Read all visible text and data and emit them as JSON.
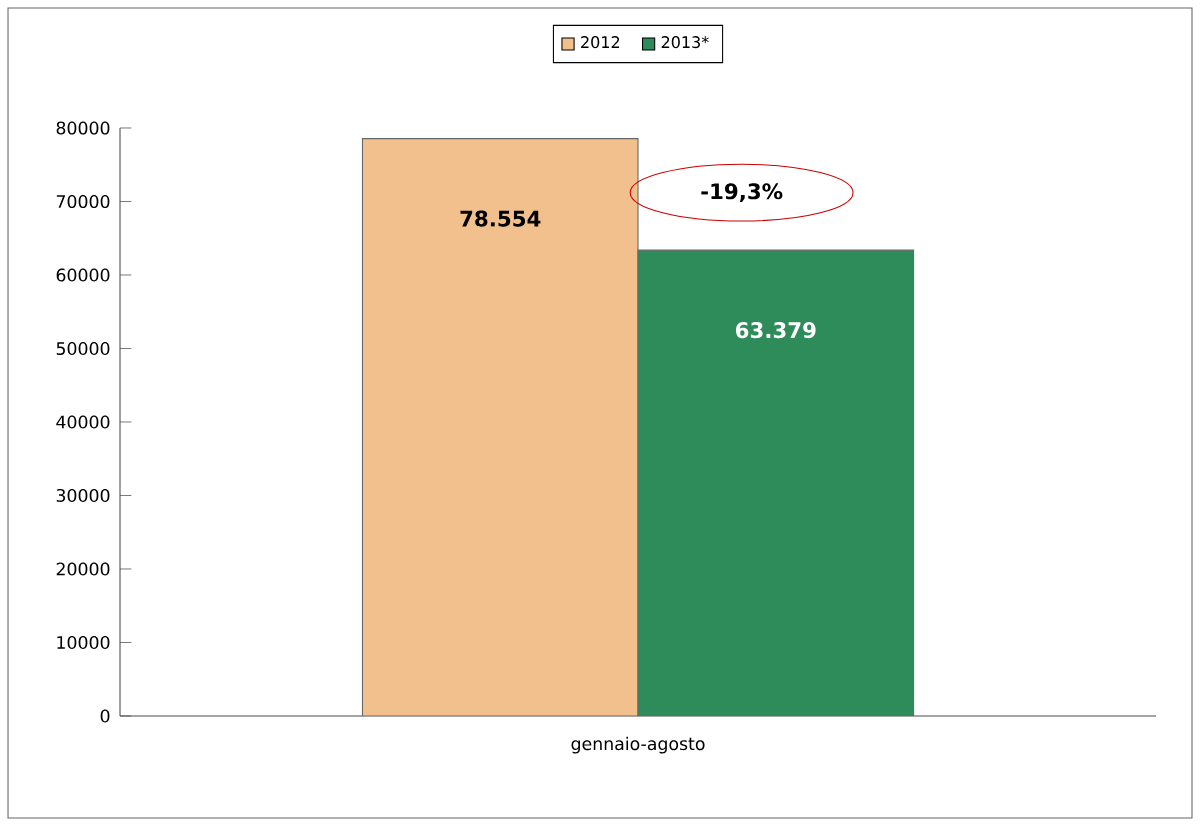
{
  "chart_data": {
    "type": "bar",
    "categories": [
      "gennaio-agosto"
    ],
    "series": [
      {
        "name": "2012",
        "color": "#f2c08c",
        "values": [
          78554
        ],
        "value_labels": [
          "78.554"
        ]
      },
      {
        "name": "2013*",
        "color": "#2e8b5a",
        "values": [
          63379
        ],
        "value_labels": [
          "63.379"
        ]
      }
    ],
    "annotations": [
      "-19,3%"
    ],
    "ylim": [
      0,
      80000
    ],
    "yticks": [
      0,
      10000,
      20000,
      30000,
      40000,
      50000,
      60000,
      70000,
      80000
    ],
    "legend": "top"
  }
}
